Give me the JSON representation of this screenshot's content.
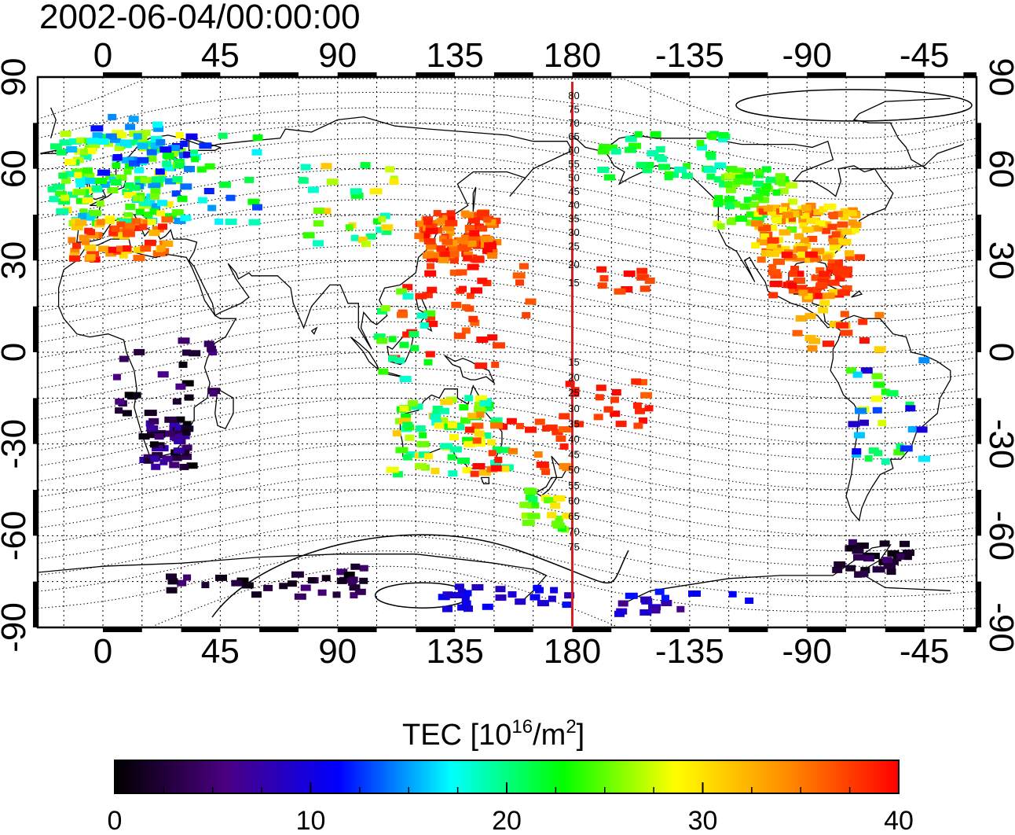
{
  "title": "2002-06-04/00:00:00",
  "map": {
    "lon_ticks": [
      "0",
      "45",
      "90",
      "135",
      "180",
      "-135",
      "-90",
      "-45"
    ],
    "lat_ticks": [
      "90",
      "60",
      "30",
      "0",
      "-30",
      "-60",
      "-90"
    ],
    "lon_range": [
      -25,
      335
    ],
    "lat_range": [
      -90,
      90
    ],
    "meridian_marker_lon": 180,
    "marker_color": "#d42020",
    "contour_labels_north": [
      "80",
      "75",
      "70",
      "65",
      "60",
      "55",
      "50",
      "45",
      "40",
      "35",
      "30",
      "25",
      "20",
      "15"
    ],
    "contour_labels_south": [
      "15",
      "20",
      "25",
      "30",
      "35",
      "40",
      "45",
      "50",
      "55",
      "60",
      "65",
      "70",
      "75"
    ]
  },
  "colorbar": {
    "label_prefix": "TEC  [10",
    "label_exp1": "16",
    "label_mid": "/m",
    "label_exp2": "2",
    "label_suffix": "]",
    "ticks": [
      "0",
      "10",
      "20",
      "30",
      "40"
    ],
    "min": 0,
    "max": 40,
    "colors": [
      "#000000",
      "#4b0082",
      "#0000ff",
      "#00ffff",
      "#00ff00",
      "#ffff00",
      "#ff8c00",
      "#ff0000"
    ]
  },
  "chart_data": {
    "type": "heatmap",
    "title": "2002-06-04/00:00:00",
    "xlabel": "",
    "ylabel": "",
    "xlim": [
      -25,
      335
    ],
    "ylim": [
      -90,
      90
    ],
    "value_label": "TEC [10^16/m^2]",
    "value_range": [
      0,
      40
    ],
    "regions": [
      {
        "lon_range": [
          -20,
          30
        ],
        "lat_range": [
          28,
          75
        ],
        "tec_range": [
          12,
          38
        ]
      },
      {
        "lon_range": [
          120,
          150
        ],
        "lat_range": [
          25,
          45
        ],
        "tec_range": [
          34,
          40
        ]
      },
      {
        "lon_range": [
          -125,
          -65
        ],
        "lat_range": [
          25,
          70
        ],
        "tec_range": [
          20,
          40
        ]
      },
      {
        "lon_range": [
          110,
          155
        ],
        "lat_range": [
          -45,
          -10
        ],
        "tec_range": [
          20,
          40
        ]
      },
      {
        "lon_range": [
          20,
          35
        ],
        "lat_range": [
          -35,
          -25
        ],
        "tec_range": [
          0,
          5
        ]
      },
      {
        "lon_range": [
          20,
          180
        ],
        "lat_range": [
          -80,
          -70
        ],
        "tec_range": [
          0,
          12
        ]
      },
      {
        "lon_range": [
          -80,
          -60
        ],
        "lat_range": [
          -75,
          -55
        ],
        "tec_range": [
          0,
          4
        ]
      }
    ]
  }
}
